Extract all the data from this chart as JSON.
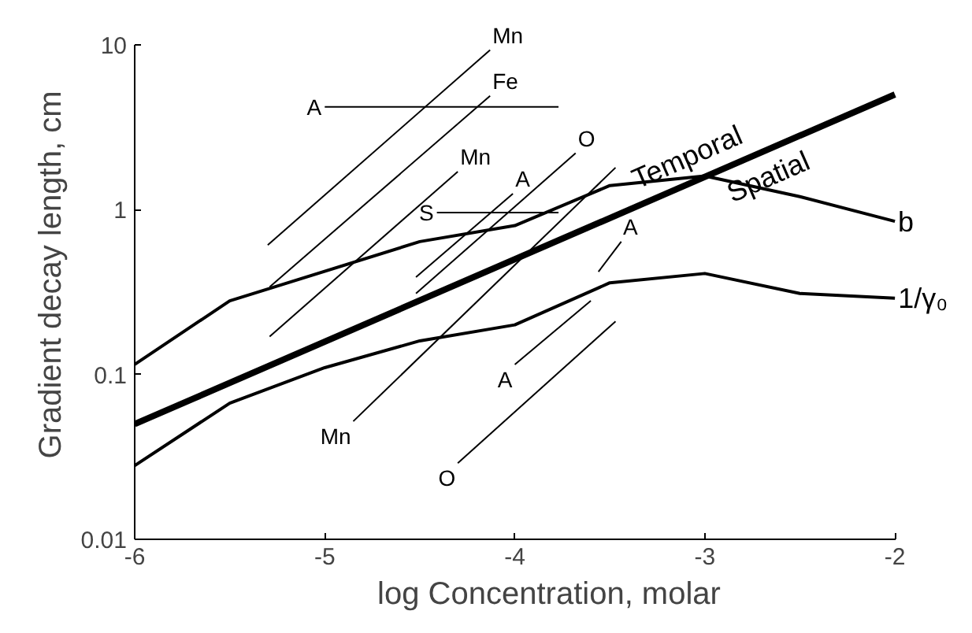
{
  "chart_data": {
    "type": "line",
    "xlabel": "log Concentration, molar",
    "ylabel": "Gradient decay length, cm",
    "xlim": [
      -6,
      -2
    ],
    "xticks": [
      -6,
      -5,
      -4,
      -3,
      -2
    ],
    "ylim": [
      0.01,
      10
    ],
    "yticks": [
      0.01,
      0.1,
      1,
      10
    ],
    "log": "y",
    "grid": false,
    "marker": "none",
    "series": [
      {
        "color": "#000000",
        "x": [
          -6,
          -2
        ],
        "values": [
          0.05,
          5
        ]
      },
      {
        "name": "b",
        "color": "#000000",
        "x": [
          -6,
          -5.5,
          -5.3,
          -4.5,
          -4.0,
          -3.5,
          -3.0,
          -2.5,
          -2.0
        ],
        "values": [
          0.115,
          0.28,
          0.33,
          0.64,
          0.8,
          1.4,
          1.6,
          1.2,
          0.85
        ]
      },
      {
        "name": "1/γ₀",
        "color": "#000000",
        "x": [
          -6,
          -5.5,
          -5.0,
          -4.5,
          -4.0,
          -3.5,
          -3.0,
          -2.5,
          -2.0
        ],
        "values": [
          0.028,
          0.067,
          0.11,
          0.16,
          0.2,
          0.36,
          0.41,
          0.31,
          0.29
        ]
      },
      {
        "name": "Mn",
        "color": "#000000",
        "x": [
          -5.3,
          -4.13
        ],
        "values": [
          0.61,
          9.3
        ]
      },
      {
        "name": "Fe",
        "color": "#000000",
        "x": [
          -5.29,
          -4.13
        ],
        "values": [
          0.34,
          4.9
        ]
      },
      {
        "name": "A",
        "color": "#000000",
        "x": [
          -3.77,
          -5.0
        ],
        "values": [
          4.2,
          4.2
        ]
      },
      {
        "name": "Mn",
        "color": "#000000",
        "x": [
          -5.29,
          -4.3
        ],
        "values": [
          0.17,
          1.7
        ]
      },
      {
        "name": "S",
        "color": "#000000",
        "x": [
          -3.77,
          -4.41
        ],
        "values": [
          0.96,
          0.96
        ]
      },
      {
        "name": "A",
        "color": "#000000",
        "x": [
          -4.52,
          -4.01
        ],
        "values": [
          0.39,
          1.25
        ]
      },
      {
        "name": "O",
        "color": "#000000",
        "x": [
          -4.52,
          -3.68
        ],
        "values": [
          0.31,
          2.2
        ]
      },
      {
        "name": "Mn",
        "color": "#000000",
        "x": [
          -3.47,
          -4.85
        ],
        "values": [
          1.8,
          0.052
        ]
      },
      {
        "name": "A",
        "color": "#000000",
        "x": [
          -3.56,
          -3.44
        ],
        "values": [
          0.42,
          0.64
        ]
      },
      {
        "name": "A",
        "color": "#000000",
        "x": [
          -3.6,
          -4.0
        ],
        "values": [
          0.28,
          0.115
        ]
      },
      {
        "name": "O",
        "color": "#000000",
        "x": [
          -3.47,
          -4.3
        ],
        "values": [
          0.21,
          0.029
        ]
      }
    ],
    "annotations": [
      "Temporal",
      "Spatial"
    ]
  }
}
